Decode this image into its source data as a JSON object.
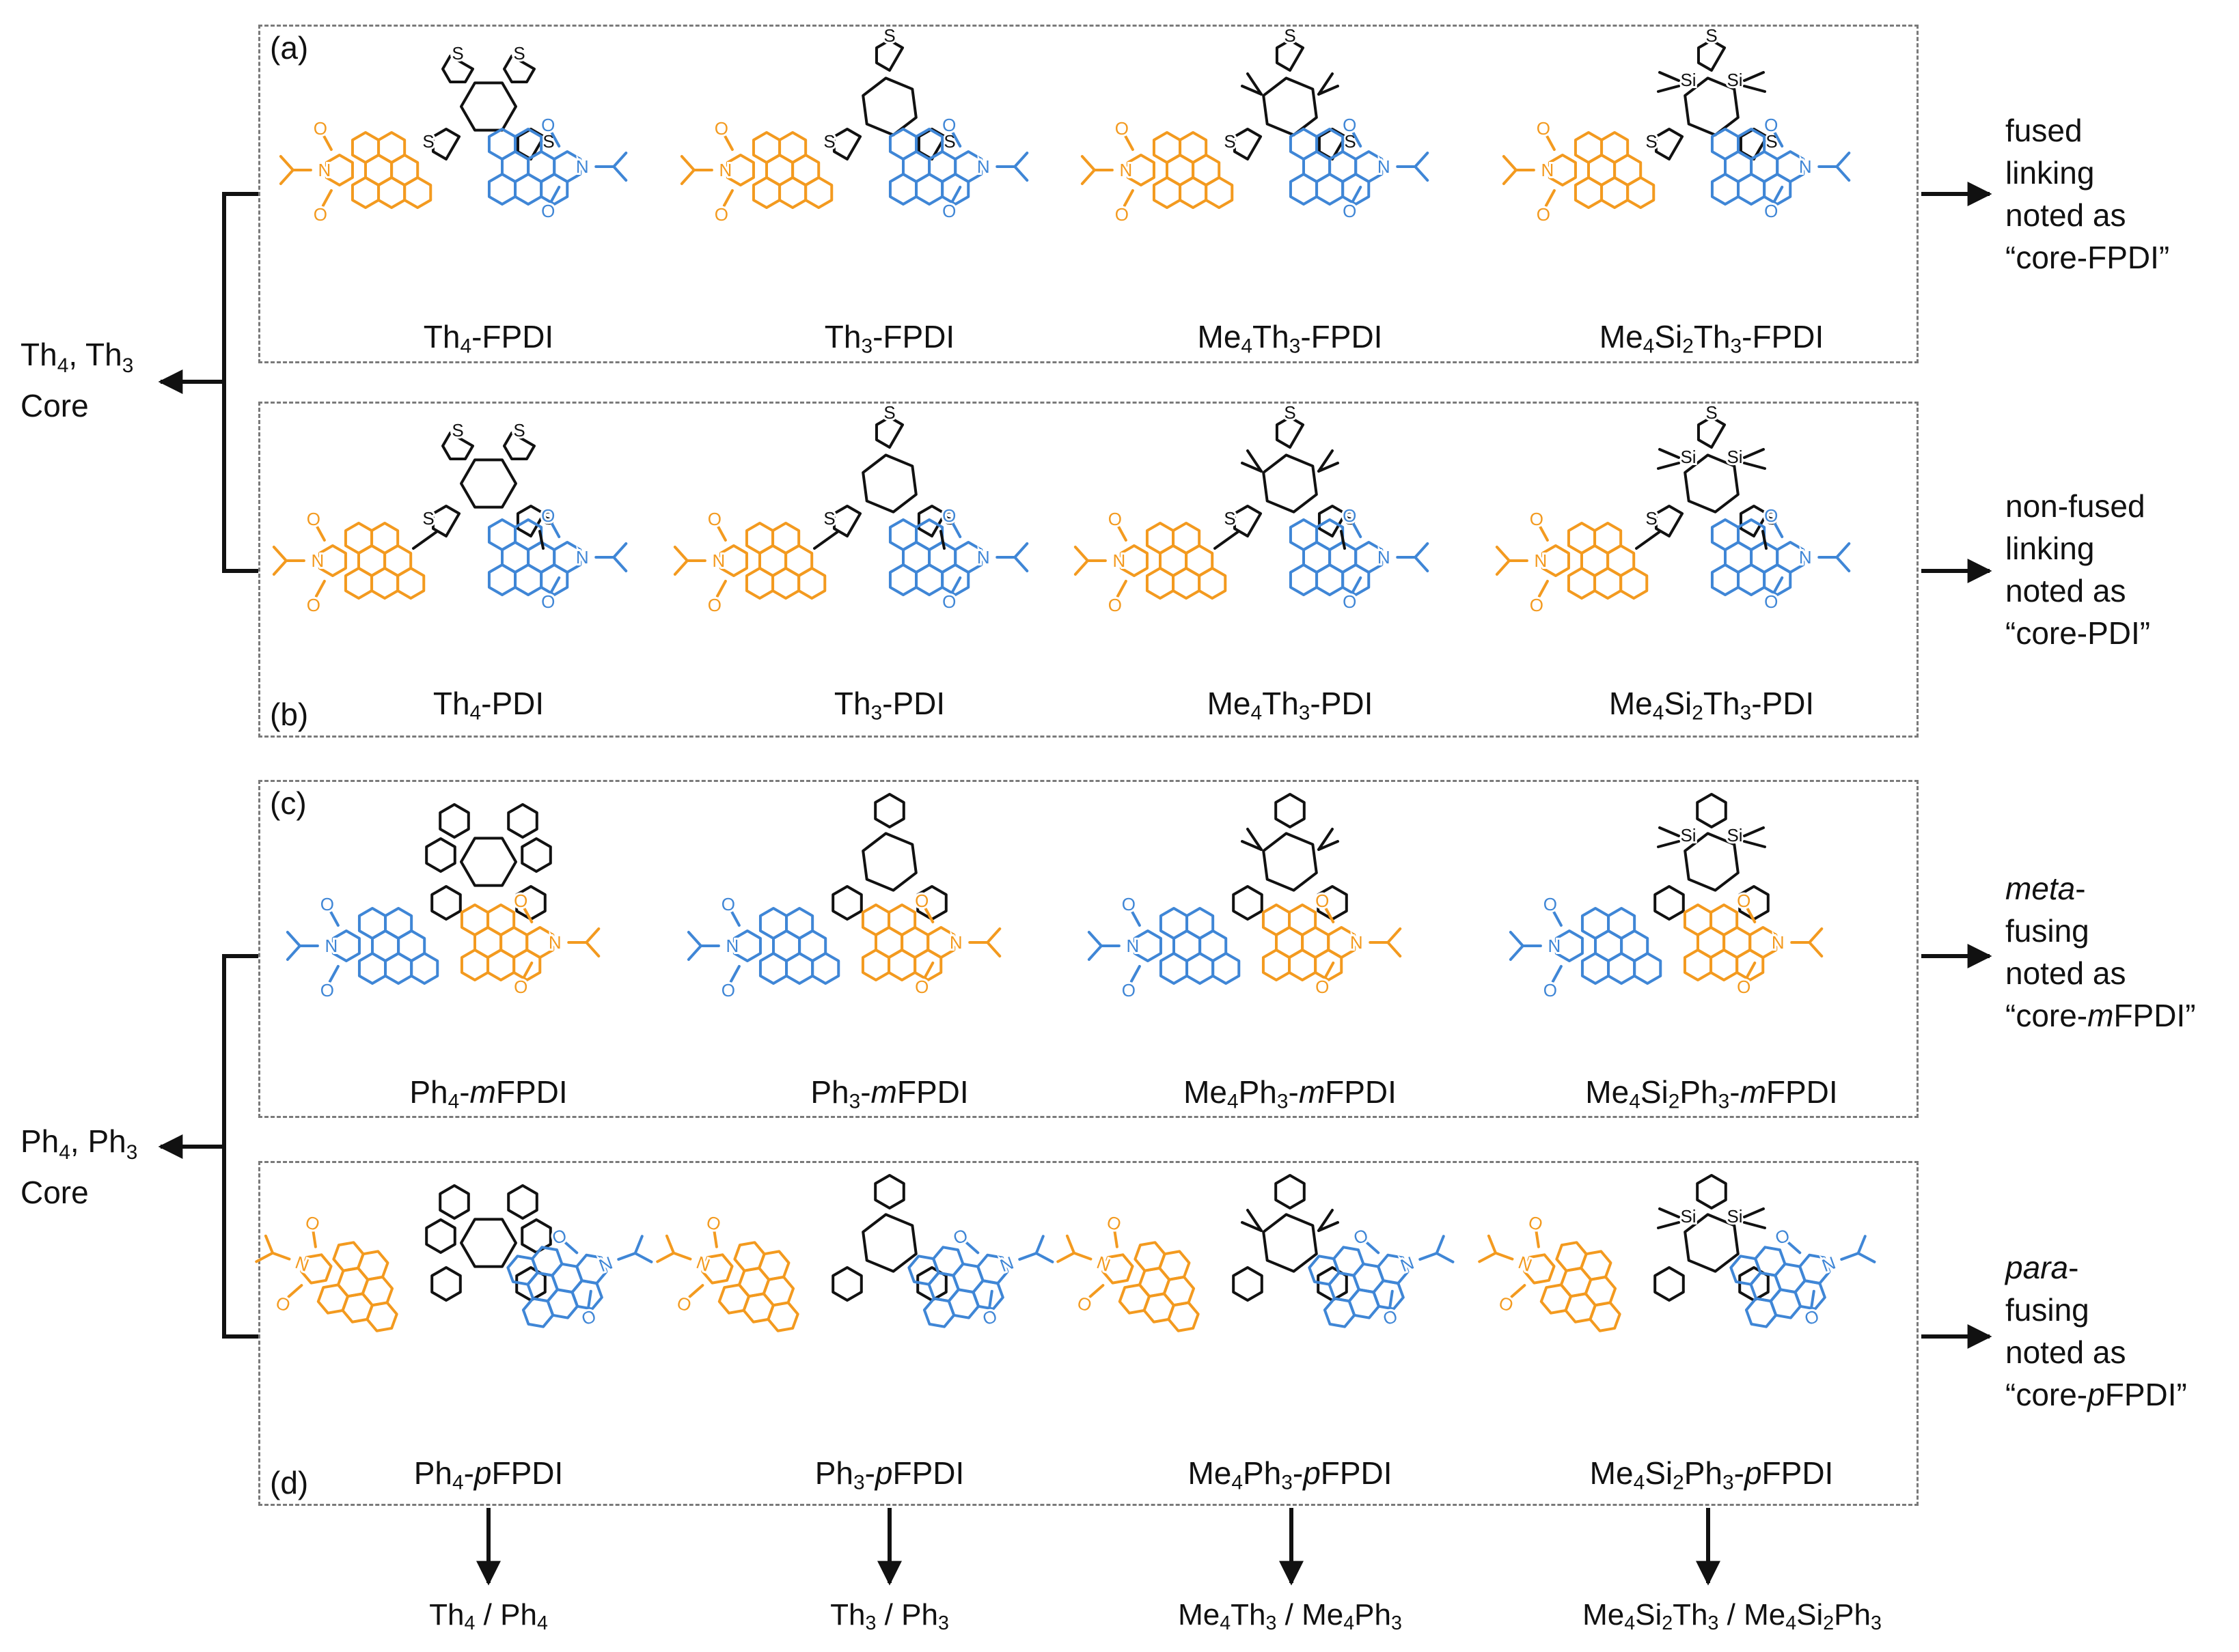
{
  "colors": {
    "acceptor_left": "#f39a1f",
    "acceptor_right": "#3f86d6",
    "core": "#111111",
    "frame": "#7a7a7a"
  },
  "panels": [
    {
      "label": "(a)",
      "compounds": [
        {
          "pre": "Th",
          "s1": "4",
          "mid": "",
          "s2": "",
          "post": "-FPDI",
          "italic": "",
          "tail": ""
        },
        {
          "pre": "Th",
          "s1": "3",
          "mid": "",
          "s2": "",
          "post": "-FPDI",
          "italic": "",
          "tail": ""
        },
        {
          "pre": "Me",
          "s1": "4",
          "mid": "Th",
          "s2": "3",
          "post": "-FPDI",
          "italic": "",
          "tail": ""
        },
        {
          "pre": "Me",
          "s1": "4",
          "mid": "Si",
          "s2": "2",
          "post": "Th",
          "s3": "3",
          "tail2": "-FPDI"
        }
      ]
    },
    {
      "label": "(b)",
      "compounds": [
        {
          "pre": "Th",
          "s1": "4",
          "post": "-PDI"
        },
        {
          "pre": "Th",
          "s1": "3",
          "post": "-PDI"
        },
        {
          "pre": "Me",
          "s1": "4",
          "mid": "Th",
          "s2": "3",
          "post": "-PDI"
        },
        {
          "pre": "Me",
          "s1": "4",
          "mid": "Si",
          "s2": "2",
          "post": "Th",
          "s3": "3",
          "tail2": "-PDI"
        }
      ]
    },
    {
      "label": "(c)",
      "compounds": [
        {
          "pre": "Ph",
          "s1": "4",
          "post": "-",
          "italic": "m",
          "tail": "FPDI"
        },
        {
          "pre": "Ph",
          "s1": "3",
          "post": "-",
          "italic": "m",
          "tail": "FPDI"
        },
        {
          "pre": "Me",
          "s1": "4",
          "mid": "Ph",
          "s2": "3",
          "post": "-",
          "italic": "m",
          "tail": "FPDI"
        },
        {
          "pre": "Me",
          "s1": "4",
          "mid": "Si",
          "s2": "2",
          "post": "Ph",
          "s3": "3",
          "tail2": "-",
          "italic": "m",
          "tail": "FPDI"
        }
      ]
    },
    {
      "label": "(d)",
      "compounds": [
        {
          "pre": "Ph",
          "s1": "4",
          "post": "-",
          "italic": "p",
          "tail": "FPDI"
        },
        {
          "pre": "Ph",
          "s1": "3",
          "post": "-",
          "italic": "p",
          "tail": "FPDI"
        },
        {
          "pre": "Me",
          "s1": "4",
          "mid": "Ph",
          "s2": "3",
          "post": "-",
          "italic": "p",
          "tail": "FPDI"
        },
        {
          "pre": "Me",
          "s1": "4",
          "mid": "Si",
          "s2": "2",
          "post": "Ph",
          "s3": "3",
          "tail2": "-",
          "italic": "p",
          "tail": "FPDI"
        }
      ]
    }
  ],
  "side_labels": {
    "th": {
      "line1_pre": "Th",
      "line1_s1": "4",
      "line1_mid": ", Th",
      "line1_s2": "3",
      "line2": "Core"
    },
    "ph": {
      "line1_pre": "Ph",
      "line1_s1": "4",
      "line1_mid": ", Ph",
      "line1_s2": "3",
      "line2": "Core"
    }
  },
  "notes": {
    "a": [
      "fused",
      "linking",
      "noted as",
      "“core-FPDI”"
    ],
    "b": [
      "non-fused",
      "linking",
      "noted as",
      "“core-PDI”"
    ],
    "c": {
      "l1_italic": "meta",
      "l1_tail": "-",
      "l2": "fusing",
      "l3": "noted as",
      "l4_pre": "“core-",
      "l4_italic": "m",
      "l4_tail": "FPDI”"
    },
    "d": {
      "l1_italic": "para",
      "l1_tail": "-",
      "l2": "fusing",
      "l3": "noted as",
      "l4_pre": "“core-",
      "l4_italic": "p",
      "l4_tail": "FPDI”"
    }
  },
  "atom_labels": {
    "s": "S",
    "o": "O",
    "n": "N",
    "si": "Si"
  },
  "bottom_labels": [
    {
      "a": "Th",
      "a1": "4",
      "sep": " / ",
      "b": "Ph",
      "b1": "4"
    },
    {
      "a": "Th",
      "a1": "3",
      "sep": " / ",
      "b": "Ph",
      "b1": "3"
    },
    {
      "a": "Me",
      "a1": "4",
      "a2": "Th",
      "a3": "3",
      "sep": " / ",
      "b": "Me",
      "b1": "4",
      "b2": "Ph",
      "b3": "3"
    },
    {
      "a": "Me",
      "a1": "4",
      "a2": "Si",
      "a3": "2",
      "a4": "Th",
      "a5": "3",
      "sep": " / ",
      "b": "Me",
      "b1": "4",
      "b2": "Si",
      "b3": "2",
      "b4": "Ph",
      "b5": "3"
    }
  ]
}
